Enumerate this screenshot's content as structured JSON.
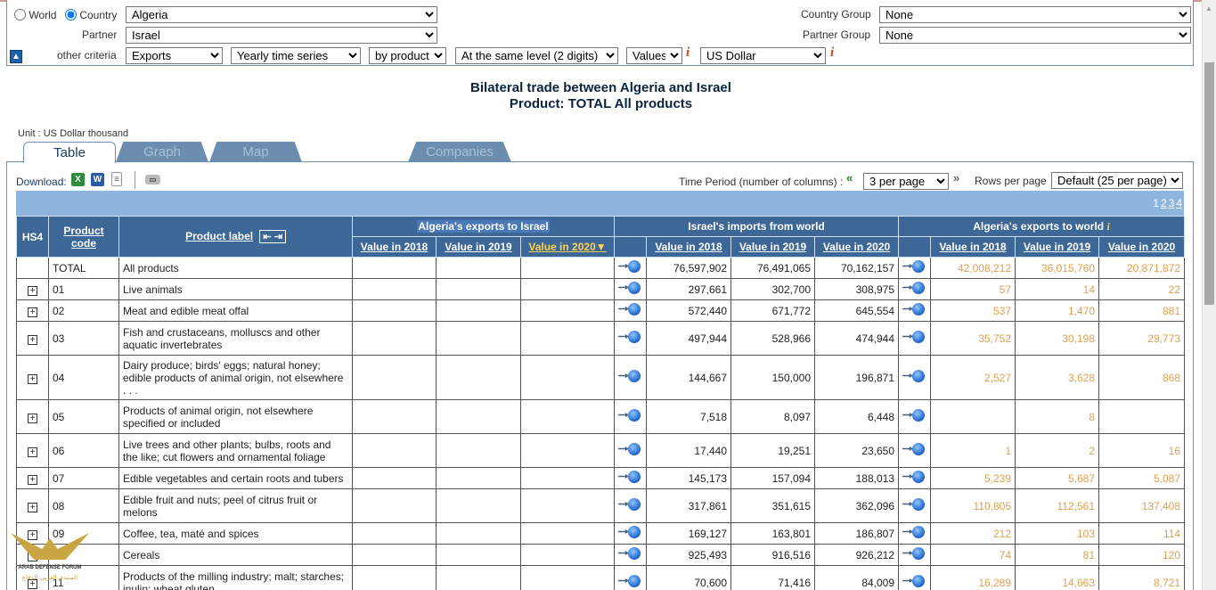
{
  "criteria": {
    "world_label": "World",
    "country_label": "Country",
    "country_value": "Algeria",
    "partner_label": "Partner",
    "partner_value": "Israel",
    "other_label": "other criteria",
    "trade_flow": "Exports",
    "time_series": "Yearly time series",
    "by": "by product",
    "level": "At the same level (2 digits)",
    "measure": "Values",
    "currency": "US Dollar",
    "country_group_label": "Country Group",
    "country_group_value": "None",
    "partner_group_label": "Partner Group",
    "partner_group_value": "None"
  },
  "title": {
    "line1": "Bilateral trade between Algeria and Israel",
    "line2": "Product: TOTAL All products"
  },
  "unit": "Unit : US Dollar thousand",
  "tabs": [
    "Table",
    "Graph",
    "Map",
    "Companies"
  ],
  "toolbar": {
    "download_label": "Download:",
    "time_period_label": "Time Period (number of columns) :",
    "time_period_value": "3 per page",
    "rows_label": "Rows per page",
    "rows_value": "Default (25 per page)",
    "pages": [
      "1",
      "2",
      "3",
      "4"
    ]
  },
  "table": {
    "hs4": "HS4",
    "product_code": "Product code",
    "product_label": "Product label",
    "groups": [
      "Algeria's exports to Israel",
      "Israel's imports from world",
      "Algeria's exports to world"
    ],
    "years": [
      "Value in 2018",
      "Value in 2019",
      "Value in 2020"
    ],
    "rows": [
      {
        "code": "TOTAL",
        "label": "All products",
        "imp": [
          "76,597,902",
          "76,491,065",
          "70,162,157"
        ],
        "exp": [
          "42,008,212",
          "36,015,760",
          "20,871,872"
        ],
        "plus": false
      },
      {
        "code": "01",
        "label": "Live animals",
        "imp": [
          "297,661",
          "302,700",
          "308,975"
        ],
        "exp": [
          "57",
          "14",
          "22"
        ],
        "plus": true
      },
      {
        "code": "02",
        "label": "Meat and edible meat offal",
        "imp": [
          "572,440",
          "671,772",
          "645,554"
        ],
        "exp": [
          "537",
          "1,470",
          "881"
        ],
        "plus": true
      },
      {
        "code": "03",
        "label": "Fish and crustaceans, molluscs and other aquatic invertebrates",
        "imp": [
          "497,944",
          "528,966",
          "474,944"
        ],
        "exp": [
          "35,752",
          "30,198",
          "29,773"
        ],
        "plus": true
      },
      {
        "code": "04",
        "label": "Dairy produce; birds' eggs; natural honey; edible products of animal origin, not elsewhere . . .",
        "imp": [
          "144,667",
          "150,000",
          "196,871"
        ],
        "exp": [
          "2,527",
          "3,628",
          "868"
        ],
        "plus": true
      },
      {
        "code": "05",
        "label": "Products of animal origin, not elsewhere specified or included",
        "imp": [
          "7,518",
          "8,097",
          "6,448"
        ],
        "exp": [
          "",
          "8",
          ""
        ],
        "plus": true
      },
      {
        "code": "06",
        "label": "Live trees and other plants; bulbs, roots and the like; cut flowers and ornamental foliage",
        "imp": [
          "17,440",
          "19,251",
          "23,650"
        ],
        "exp": [
          "1",
          "2",
          "16"
        ],
        "plus": true
      },
      {
        "code": "07",
        "label": "Edible vegetables and certain roots and tubers",
        "imp": [
          "145,173",
          "157,094",
          "188,013"
        ],
        "exp": [
          "5,239",
          "5,687",
          "5,087"
        ],
        "plus": true
      },
      {
        "code": "08",
        "label": "Edible fruit and nuts; peel of citrus fruit or melons",
        "imp": [
          "317,861",
          "351,615",
          "362,096"
        ],
        "exp": [
          "110,805",
          "112,561",
          "137,408"
        ],
        "plus": true
      },
      {
        "code": "09",
        "label": "Coffee, tea, maté and spices",
        "imp": [
          "169,127",
          "163,801",
          "186,807"
        ],
        "exp": [
          "212",
          "103",
          "114"
        ],
        "plus": true
      },
      {
        "code": "10",
        "label": "Cereals",
        "imp": [
          "925,493",
          "916,516",
          "926,212"
        ],
        "exp": [
          "74",
          "81",
          "120"
        ],
        "plus": true
      },
      {
        "code": "11",
        "label": "Products of the milling industry; malt; starches; inulin; wheat gluten",
        "imp": [
          "70,600",
          "71,416",
          "84,009"
        ],
        "exp": [
          "16,289",
          "14,663",
          "8,721"
        ],
        "plus": true
      }
    ]
  },
  "watermark": {
    "line1": "ARAB DEFENSE FORUM",
    "line2": "المنتدى العربي للدفاع"
  }
}
